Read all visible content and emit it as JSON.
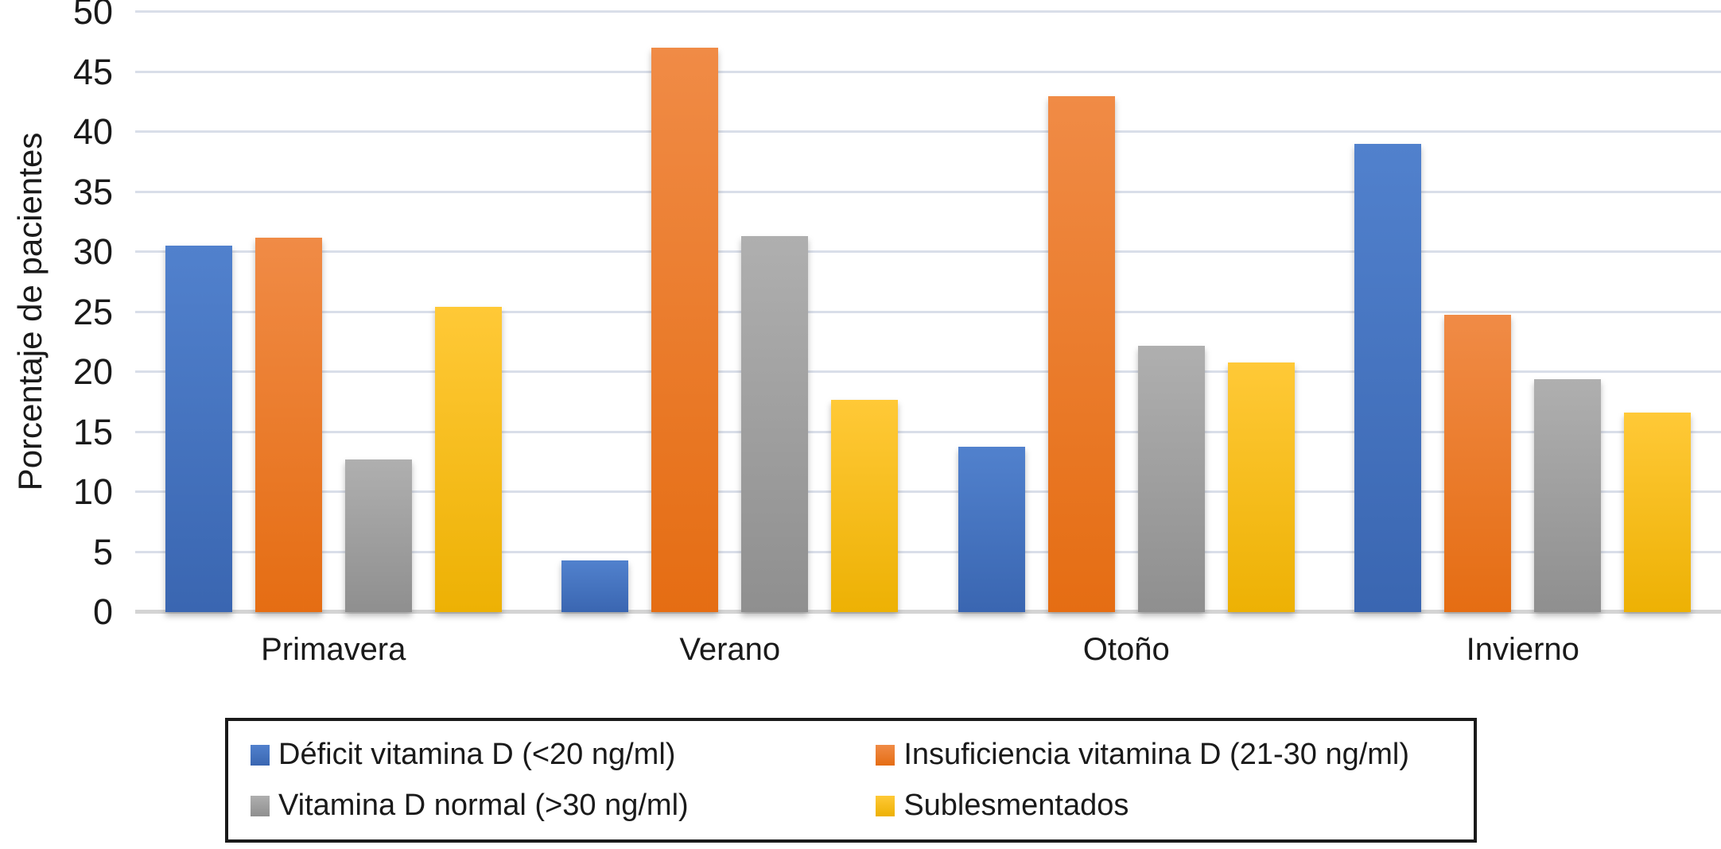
{
  "chart_data": {
    "type": "bar",
    "title": "",
    "xlabel": "",
    "ylabel": "Porcentaje de pacientes",
    "ylim": [
      0,
      50
    ],
    "yticks": [
      0,
      5,
      10,
      15,
      20,
      25,
      30,
      35,
      40,
      45,
      50
    ],
    "grid": true,
    "legend_position": "bottom",
    "categories": [
      "Primavera",
      "Verano",
      "Otoño",
      "Invierno"
    ],
    "series": [
      {
        "name": "Déficit vitamina D (<20 ng/ml)",
        "color": "#4472C4",
        "color_top": "#5181CD",
        "color_bottom": "#3A66B1",
        "values": [
          30.5,
          4.3,
          13.8,
          39.0
        ]
      },
      {
        "name": "Insuficiencia vitamina D (21-30 ng/ml)",
        "color": "#ED7D31",
        "color_top": "#F08B46",
        "color_bottom": "#E56D13",
        "values": [
          31.2,
          47.0,
          43.0,
          24.8
        ]
      },
      {
        "name": "Vitamina D normal (>30 ng/ml)",
        "color": "#A5A5A5",
        "color_top": "#AFAFAF",
        "color_bottom": "#8F8F8F",
        "values": [
          12.7,
          31.3,
          22.2,
          19.4
        ]
      },
      {
        "name": "Sublesmentados",
        "color": "#FFC000",
        "color_top": "#FFC937",
        "color_bottom": "#EDB104",
        "values": [
          25.4,
          17.7,
          20.8,
          16.6
        ]
      }
    ],
    "colors": {
      "gridline": "#D9DEE9",
      "baseline": "#D4D4D4",
      "text": "#1a1a1a"
    }
  }
}
